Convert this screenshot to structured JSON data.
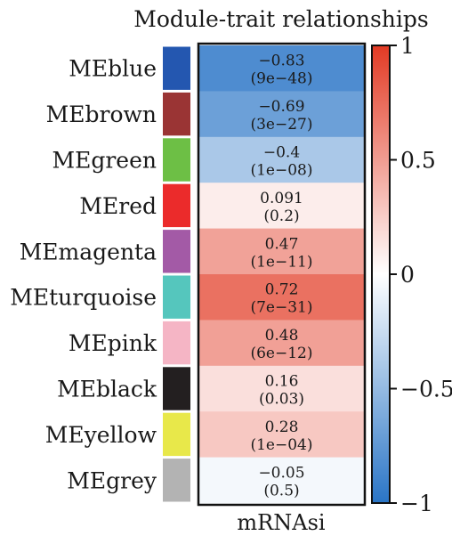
{
  "chart_data": {
    "type": "heatmap",
    "title": "Module-trait relationships",
    "columns": [
      "mRNAsi"
    ],
    "rows": [
      {
        "module": "MEblue",
        "color": "#2457b0",
        "correlation": -0.83,
        "corr_label": "−0.83",
        "p_label": "(9e−48)"
      },
      {
        "module": "MEbrown",
        "color": "#9a3434",
        "correlation": -0.69,
        "corr_label": "−0.69",
        "p_label": "(3e−27)"
      },
      {
        "module": "MEgreen",
        "color": "#6dbf45",
        "correlation": -0.4,
        "corr_label": "−0.4",
        "p_label": "(1e−08)"
      },
      {
        "module": "MEred",
        "color": "#eb2b2b",
        "correlation": 0.091,
        "corr_label": "0.091",
        "p_label": "(0.2)"
      },
      {
        "module": "MEmagenta",
        "color": "#a35aa6",
        "correlation": 0.47,
        "corr_label": "0.47",
        "p_label": "(1e−11)"
      },
      {
        "module": "MEturquoise",
        "color": "#55c6bd",
        "correlation": 0.72,
        "corr_label": "0.72",
        "p_label": "(7e−31)"
      },
      {
        "module": "MEpink",
        "color": "#f5b5c5",
        "correlation": 0.48,
        "corr_label": "0.48",
        "p_label": "(6e−12)"
      },
      {
        "module": "MEblack",
        "color": "#231f20",
        "correlation": 0.16,
        "corr_label": "0.16",
        "p_label": "(0.03)"
      },
      {
        "module": "MEyellow",
        "color": "#e8e84a",
        "correlation": 0.28,
        "corr_label": "0.28",
        "p_label": "(1e−04)"
      },
      {
        "module": "MEgrey",
        "color": "#b3b3b3",
        "correlation": -0.05,
        "corr_label": "−0.05",
        "p_label": "(0.5)"
      }
    ],
    "color_scale": {
      "min": -1,
      "max": 1,
      "low_color": "#2a75c6",
      "mid_color": "#ffffff",
      "high_color": "#e23a24",
      "ticks": [
        {
          "value": 1,
          "label": "1"
        },
        {
          "value": 0.5,
          "label": "0.5"
        },
        {
          "value": 0,
          "label": "0"
        },
        {
          "value": -0.5,
          "label": "−0.5"
        },
        {
          "value": -1,
          "label": "−1"
        }
      ]
    }
  }
}
